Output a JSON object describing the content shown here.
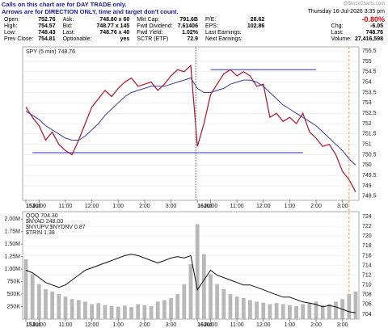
{
  "header": {
    "notice": [
      "Calls on this chart are for DAY TRADE only.",
      "Arrows are for DIRECTION ONLY, time and target don't count."
    ],
    "date": "Thursday 16-Jul-2026 3:35 pm",
    "credit": "@StockCharts.com",
    "change_pct": "-0.80%"
  },
  "quote": {
    "rows": [
      [
        [
          "Open:",
          "752.76"
        ],
        [
          "Ask:",
          "748.80 x 60"
        ],
        [
          "Mkt Cap:",
          "791.6B"
        ],
        [
          "P/E:",
          "28.62"
        ]
      ],
      [
        [
          "High:",
          "754.57"
        ],
        [
          "Bid:",
          "748.77 x 145"
        ],
        [
          "Fwd Dividend:",
          "7.61406"
        ],
        [
          "EPS:",
          "102.86"
        ]
      ],
      [
        [
          "Low:",
          "748.43"
        ],
        [
          "Last:",
          "748.76 x 40"
        ],
        [
          "Fwd Yield:",
          "1.02%"
        ],
        [
          "Last Earnings:"
        ]
      ],
      [
        [
          "Prev Close:",
          "754.81"
        ],
        [
          "Optionable:",
          "yes"
        ],
        [
          "SCTR (ETF)",
          "72.9"
        ],
        [
          "Next Earnings:"
        ]
      ]
    ],
    "right": [
      [
        "Chg:",
        "-6.05"
      ],
      [
        "Last:",
        "748.76"
      ],
      [
        "Volume:",
        "27,416,598"
      ]
    ]
  },
  "chart_data": [
    {
      "type": "line",
      "legend": "SPY (5 min) 748.76",
      "categories": [
        "15Jul",
        null,
        "10:00",
        null,
        null,
        null,
        "11:00",
        null,
        null,
        null,
        "12:00",
        null,
        null,
        null,
        "1:00",
        null,
        null,
        null,
        "2:00",
        null,
        null,
        null,
        "3:00",
        null,
        null,
        null,
        "16Jul",
        null,
        "10:00",
        null,
        null,
        null,
        "11:00",
        null,
        null,
        null,
        "12:00",
        null,
        null,
        null,
        "1:00",
        null,
        null,
        null,
        "2:00",
        null,
        null,
        null,
        "3:00",
        null,
        null
      ],
      "series": [
        {
          "color": "#b0102a",
          "values": [
            752.8,
            752.3,
            751.9,
            751.2,
            751.6,
            751.0,
            750.7,
            750.5,
            751.2,
            752.0,
            752.8,
            753.2,
            753.6,
            753.3,
            753.7,
            754.0,
            754.2,
            753.8,
            753.9,
            754.0,
            753.6,
            753.9,
            754.3,
            754.6,
            754.5,
            754.8,
            750.9,
            752.0,
            753.4,
            753.9,
            754.4,
            754.6,
            754.3,
            754.5,
            754.3,
            753.8,
            753.9,
            752.3,
            752.5,
            752.1,
            752.3,
            752.0,
            752.5,
            751.6,
            751.3,
            750.9,
            751.0,
            750.5,
            749.7,
            749.3,
            748.7
          ]
        },
        {
          "color": "#3b3b9c",
          "values": [
            752.6,
            752.4,
            752.2,
            751.9,
            751.7,
            751.5,
            751.3,
            751.2,
            751.2,
            751.4,
            751.7,
            752.0,
            752.4,
            752.7,
            753.0,
            753.3,
            753.5,
            753.6,
            753.7,
            753.8,
            753.8,
            753.8,
            753.9,
            754.0,
            754.1,
            754.2,
            753.7,
            753.5,
            753.5,
            753.6,
            753.7,
            753.9,
            754.0,
            754.1,
            754.1,
            754.0,
            753.8,
            753.5,
            753.2,
            752.9,
            752.7,
            752.5,
            752.3,
            752.1,
            751.9,
            751.6,
            751.3,
            751.0,
            750.7,
            750.3,
            750.0
          ]
        }
      ],
      "levels": [
        754.6,
        750.6
      ],
      "levels_color": "#2b35c8",
      "ylim": [
        748.3,
        755.7
      ],
      "yticks": [
        748.5,
        749.0,
        749.5,
        750.0,
        750.5,
        751.0,
        751.5,
        752.0,
        752.5,
        753.0,
        753.5,
        754.0,
        754.5,
        755.0,
        755.5
      ]
    },
    {
      "type": "combo",
      "legend": [
        "QQQ 704.30",
        "$NYAD 248.00",
        "$NYUPV:$NYDNV 0.87",
        "$TRIN 1.38"
      ],
      "categories": [
        "15Jul",
        null,
        "10:00",
        null,
        null,
        null,
        "11:00",
        null,
        null,
        null,
        "12:00",
        null,
        null,
        null,
        "1:00",
        null,
        null,
        null,
        "2:00",
        null,
        null,
        null,
        "3:00",
        null,
        null,
        null,
        "16Jul",
        null,
        "10:00",
        null,
        null,
        null,
        "11:00",
        null,
        null,
        null,
        "12:00",
        null,
        null,
        null,
        "1:00",
        null,
        null,
        null,
        "2:00",
        null,
        null,
        null,
        "3:00",
        null,
        null
      ],
      "series": [
        {
          "type": "bar",
          "color": "#b8b8b8",
          "values": [
            1200000,
            900000,
            700000,
            600000,
            550000,
            500000,
            450000,
            400000,
            380000,
            350000,
            300000,
            320000,
            280000,
            260000,
            250000,
            270000,
            240000,
            300000,
            280000,
            260000,
            350000,
            380000,
            420000,
            500000,
            700000,
            1100000,
            1900000,
            1300000,
            900000,
            700000,
            600000,
            500000,
            450000,
            420000,
            380000,
            350000,
            330000,
            300000,
            320000,
            300000,
            280000,
            260000,
            300000,
            320000,
            350000,
            280000,
            300000,
            350000,
            400000,
            500000,
            550000
          ]
        },
        {
          "type": "line",
          "axis": "y2",
          "color": "#111111",
          "values": [
            713,
            712.5,
            711.5,
            710.5,
            710,
            709.5,
            710,
            711,
            712,
            713,
            713.5,
            714,
            714.5,
            715,
            715.5,
            716,
            716.3,
            716,
            715.5,
            715,
            714.5,
            715,
            715.5,
            715.8,
            715.5,
            716,
            709,
            711,
            713,
            712,
            711.5,
            711,
            710.5,
            710,
            710,
            709.5,
            709,
            708.5,
            708,
            707.5,
            707.5,
            707,
            706.5,
            706.3,
            706,
            705.5,
            705.8,
            705.5,
            705,
            704.5,
            704.3
          ]
        }
      ],
      "ylim": [
        0,
        2150000
      ],
      "yticks": [
        {
          "value": 250000,
          "label": "250K"
        },
        {
          "value": 500000,
          "label": "500K"
        },
        {
          "value": 750000,
          "label": "750K"
        },
        {
          "value": 1000000,
          "label": "1.00M"
        },
        {
          "value": 1250000,
          "label": "1.25M"
        },
        {
          "value": 1500000,
          "label": "1.50M"
        },
        {
          "value": 1750000,
          "label": "1.75M"
        },
        {
          "value": 2000000,
          "label": "2.00M"
        }
      ],
      "y2lim": [
        703,
        725
      ],
      "y2ticks": [
        704,
        706,
        708,
        710,
        712,
        714,
        716,
        718,
        720,
        722,
        724
      ]
    }
  ]
}
